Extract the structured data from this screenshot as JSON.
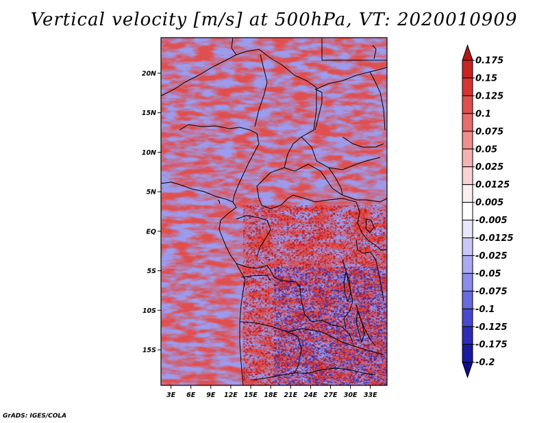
{
  "title": "Vertical velocity [m/s] at 500hPa, VT: 2020010909",
  "credit": "GrADS: IGES/COLA",
  "map": {
    "lat_labels": [
      "20N",
      "15N",
      "10N",
      "5N",
      "EQ",
      "5S",
      "10S",
      "15S"
    ],
    "lat_values": [
      20,
      15,
      10,
      5,
      0,
      -5,
      -10,
      -15
    ],
    "lon_labels": [
      "3E",
      "6E",
      "9E",
      "12E",
      "15E",
      "18E",
      "21E",
      "24E",
      "27E",
      "30E",
      "33E"
    ],
    "lon_values": [
      3,
      6,
      9,
      12,
      15,
      18,
      21,
      24,
      27,
      30,
      33
    ],
    "lon_range": [
      1.5,
      35.5
    ],
    "lat_range": [
      -19.5,
      24.5
    ]
  },
  "colorbar": {
    "levels": [
      "0.175",
      "0.15",
      "0.125",
      "0.1",
      "0.075",
      "0.05",
      "0.025",
      "0.0125",
      "0.005",
      "-0.005",
      "-0.0125",
      "-0.025",
      "-0.05",
      "-0.075",
      "-0.1",
      "-0.125",
      "-0.175",
      "-0.2"
    ],
    "colors": [
      "#b01818",
      "#c82424",
      "#d63434",
      "#e04e4e",
      "#e86c6c",
      "#ef8e8e",
      "#f5b2b2",
      "#f9d2d2",
      "#fdeeee",
      "#ffffff",
      "#e6e6fc",
      "#c8c8f8",
      "#aaaaf2",
      "#8c8cea",
      "#6a6ae0",
      "#4848d0",
      "#2c2cb8",
      "#1a1aa0",
      "#0e0e86"
    ]
  }
}
